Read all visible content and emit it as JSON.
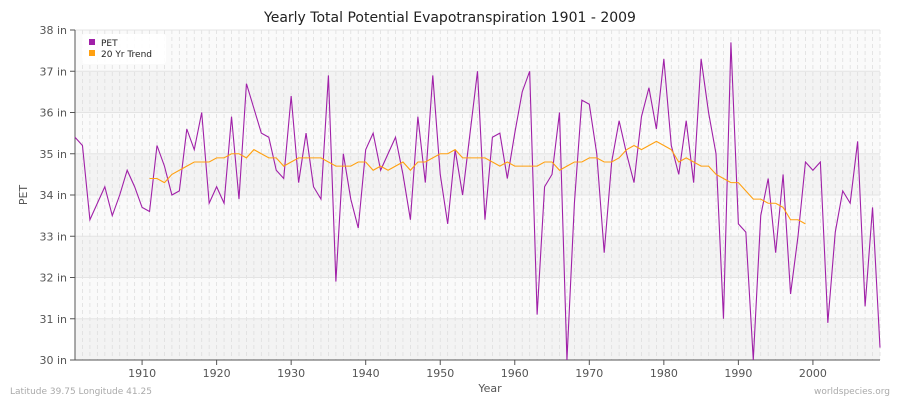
{
  "chart_data": {
    "type": "line",
    "title": "Yearly Total Potential Evapotranspiration 1901 - 2009",
    "xlabel": "Year",
    "ylabel": "PET",
    "xlim": [
      1901,
      2009
    ],
    "ylim": [
      30,
      38
    ],
    "x_ticks": [
      1910,
      1920,
      1930,
      1940,
      1950,
      1960,
      1970,
      1980,
      1990,
      2000
    ],
    "y_ticks": [
      "30 in",
      "31 in",
      "32 in",
      "33 in",
      "34 in",
      "35 in",
      "36 in",
      "37 in",
      "38 in"
    ],
    "grid": true,
    "legend_position": "top-left",
    "series": [
      {
        "name": "PET",
        "color": "#a020a8",
        "start_year": 1901,
        "values": [
          35.4,
          35.2,
          33.4,
          33.8,
          34.2,
          33.5,
          34.0,
          34.6,
          34.2,
          33.7,
          33.6,
          35.2,
          34.7,
          34.0,
          34.1,
          35.6,
          35.1,
          36.0,
          33.8,
          34.2,
          33.8,
          35.9,
          33.9,
          36.7,
          36.1,
          35.5,
          35.4,
          34.6,
          34.4,
          36.4,
          34.3,
          35.5,
          34.2,
          33.9,
          36.9,
          31.9,
          35.0,
          33.9,
          33.2,
          35.1,
          35.5,
          34.6,
          35.0,
          35.4,
          34.5,
          33.4,
          35.9,
          34.3,
          36.9,
          34.5,
          33.3,
          35.1,
          34.0,
          35.5,
          37.0,
          33.4,
          35.4,
          35.5,
          34.4,
          35.5,
          36.5,
          37.0,
          31.1,
          34.2,
          34.5,
          36.0,
          30.0,
          33.8,
          36.3,
          36.2,
          35.0,
          32.6,
          34.8,
          35.8,
          35.0,
          34.3,
          35.9,
          36.6,
          35.6,
          37.3,
          35.2,
          34.5,
          35.8,
          34.3,
          37.3,
          36.0,
          35.0,
          31.0,
          37.7,
          33.3,
          33.1,
          30.0,
          33.5,
          34.4,
          32.6,
          34.5,
          31.6,
          33.0,
          34.8,
          34.6,
          34.8,
          30.9,
          33.1,
          34.1,
          33.8,
          35.3,
          31.3,
          33.7,
          30.3
        ]
      },
      {
        "name": "20 Yr Trend",
        "color": "#ffa010",
        "start_year": 1911,
        "values": [
          34.4,
          34.4,
          34.3,
          34.5,
          34.6,
          34.7,
          34.8,
          34.8,
          34.8,
          34.9,
          34.9,
          35.0,
          35.0,
          34.9,
          35.1,
          35.0,
          34.9,
          34.9,
          34.7,
          34.8,
          34.9,
          34.9,
          34.9,
          34.9,
          34.8,
          34.7,
          34.7,
          34.7,
          34.8,
          34.8,
          34.6,
          34.7,
          34.6,
          34.7,
          34.8,
          34.6,
          34.8,
          34.8,
          34.9,
          35.0,
          35.0,
          35.1,
          34.9,
          34.9,
          34.9,
          34.9,
          34.8,
          34.7,
          34.8,
          34.7,
          34.7,
          34.7,
          34.7,
          34.8,
          34.8,
          34.6,
          34.7,
          34.8,
          34.8,
          34.9,
          34.9,
          34.8,
          34.8,
          34.9,
          35.1,
          35.2,
          35.1,
          35.2,
          35.3,
          35.2,
          35.1,
          34.8,
          34.9,
          34.8,
          34.7,
          34.7,
          34.5,
          34.4,
          34.3,
          34.3,
          34.1,
          33.9,
          33.9,
          33.8,
          33.8,
          33.7,
          33.4,
          33.4,
          33.3
        ]
      }
    ]
  },
  "footer": {
    "left": "Latitude 39.75 Longitude 41.25",
    "right": "worldspecies.org"
  }
}
